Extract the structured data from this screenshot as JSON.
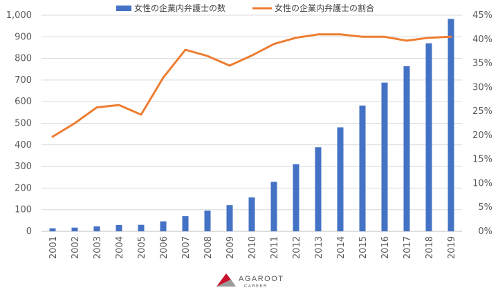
{
  "chart_data": {
    "type": "bar+line",
    "categories": [
      "2001",
      "2002",
      "2003",
      "2004",
      "2005",
      "2006",
      "2007",
      "2008",
      "2009",
      "2010",
      "2011",
      "2012",
      "2013",
      "2014",
      "2015",
      "2016",
      "2017",
      "2018",
      "2019"
    ],
    "series": [
      {
        "name": "女性の企業内弁護士の数",
        "type": "bar",
        "axis": "left",
        "color": "#4472C4",
        "values": [
          14,
          17,
          23,
          29,
          30,
          46,
          70,
          96,
          121,
          157,
          229,
          310,
          389,
          481,
          582,
          688,
          764,
          870,
          983
        ]
      },
      {
        "name": "女性の企業内弁護士の割合",
        "type": "line",
        "axis": "right",
        "color": "#ED7D31",
        "values": [
          19.7,
          22.5,
          25.8,
          26.3,
          24.3,
          32.0,
          37.8,
          36.5,
          34.5,
          36.6,
          39.0,
          40.3,
          41.0,
          41.0,
          40.5,
          40.5,
          39.7,
          40.3,
          40.5
        ]
      }
    ],
    "ylim_left": [
      0,
      1000
    ],
    "yticks_left": [
      "0",
      "100",
      "200",
      "300",
      "400",
      "500",
      "600",
      "700",
      "800",
      "900",
      "1,000"
    ],
    "ylim_right": [
      0,
      45
    ],
    "yticks_right": [
      "0%",
      "5%",
      "10%",
      "15%",
      "20%",
      "25%",
      "30%",
      "35%",
      "40%",
      "45%"
    ],
    "grid": true,
    "legend_position": "top"
  },
  "logo": {
    "name": "AGAROOT",
    "sub": "CAREER",
    "colors": [
      "#C8102E",
      "#6E6E6E",
      "#9B9B9B"
    ]
  }
}
